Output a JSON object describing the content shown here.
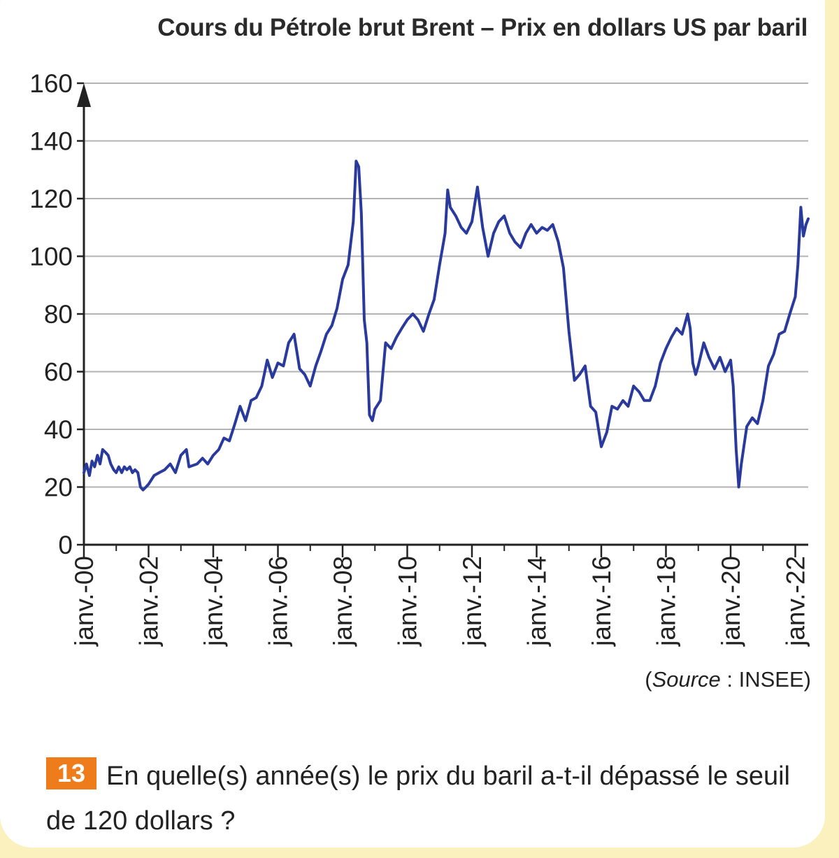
{
  "colors": {
    "line": "#2a3a9c",
    "grid": "#b3b3b3",
    "axis": "#222222",
    "badge": "#ee7c1a",
    "background": "#fbf1bf"
  },
  "chart_data": {
    "type": "line",
    "title": "Cours du Pétrole brut Brent – Prix en dollars US par baril",
    "xlabel": "",
    "ylabel": "",
    "ylim": [
      0,
      160
    ],
    "yticks": [
      0,
      20,
      40,
      60,
      80,
      100,
      120,
      140,
      160
    ],
    "xlim": [
      2000.0,
      2022.4
    ],
    "grid": true,
    "xticks": [
      {
        "x": 2000,
        "label": "janv.-00"
      },
      {
        "x": 2002,
        "label": "janv.-02"
      },
      {
        "x": 2004,
        "label": "janv.-04"
      },
      {
        "x": 2006,
        "label": "janv.-06"
      },
      {
        "x": 2008,
        "label": "janv.-08"
      },
      {
        "x": 2010,
        "label": "janv.-10"
      },
      {
        "x": 2012,
        "label": "janv.-12"
      },
      {
        "x": 2014,
        "label": "janv.-14"
      },
      {
        "x": 2016,
        "label": "janv.-16"
      },
      {
        "x": 2018,
        "label": "janv.-18"
      },
      {
        "x": 2020,
        "label": "janv.-20"
      },
      {
        "x": 2022,
        "label": "janv.-22"
      }
    ],
    "series": [
      {
        "name": "Brent",
        "x": [
          2000.0,
          2000.08,
          2000.17,
          2000.25,
          2000.33,
          2000.42,
          2000.5,
          2000.58,
          2000.67,
          2000.75,
          2000.83,
          2000.92,
          2001.0,
          2001.08,
          2001.17,
          2001.25,
          2001.33,
          2001.42,
          2001.5,
          2001.58,
          2001.67,
          2001.75,
          2001.83,
          2001.92,
          2002.0,
          2002.17,
          2002.33,
          2002.5,
          2002.67,
          2002.83,
          2003.0,
          2003.17,
          2003.25,
          2003.5,
          2003.67,
          2003.83,
          2004.0,
          2004.17,
          2004.33,
          2004.5,
          2004.67,
          2004.83,
          2005.0,
          2005.17,
          2005.33,
          2005.5,
          2005.67,
          2005.83,
          2006.0,
          2006.17,
          2006.33,
          2006.5,
          2006.67,
          2006.83,
          2007.0,
          2007.17,
          2007.33,
          2007.5,
          2007.67,
          2007.83,
          2008.0,
          2008.17,
          2008.33,
          2008.42,
          2008.5,
          2008.58,
          2008.67,
          2008.75,
          2008.83,
          2008.92,
          2009.0,
          2009.17,
          2009.33,
          2009.5,
          2009.67,
          2009.83,
          2010.0,
          2010.17,
          2010.33,
          2010.5,
          2010.67,
          2010.83,
          2011.0,
          2011.17,
          2011.25,
          2011.33,
          2011.5,
          2011.67,
          2011.83,
          2012.0,
          2012.17,
          2012.33,
          2012.5,
          2012.67,
          2012.83,
          2013.0,
          2013.17,
          2013.33,
          2013.5,
          2013.67,
          2013.83,
          2014.0,
          2014.17,
          2014.33,
          2014.5,
          2014.67,
          2014.83,
          2015.0,
          2015.17,
          2015.33,
          2015.5,
          2015.67,
          2015.83,
          2016.0,
          2016.17,
          2016.33,
          2016.5,
          2016.67,
          2016.83,
          2017.0,
          2017.17,
          2017.33,
          2017.5,
          2017.67,
          2017.83,
          2018.0,
          2018.17,
          2018.33,
          2018.5,
          2018.67,
          2018.75,
          2018.83,
          2018.92,
          2019.0,
          2019.17,
          2019.33,
          2019.5,
          2019.67,
          2019.83,
          2020.0,
          2020.08,
          2020.17,
          2020.25,
          2020.33,
          2020.5,
          2020.67,
          2020.83,
          2021.0,
          2021.17,
          2021.33,
          2021.5,
          2021.67,
          2021.83,
          2022.0,
          2022.08,
          2022.17,
          2022.25,
          2022.33,
          2022.4
        ],
        "values": [
          25,
          28,
          24,
          29,
          27,
          31,
          28,
          33,
          32,
          31,
          28,
          26,
          25,
          27,
          25,
          27,
          26,
          27,
          25,
          26,
          25,
          20,
          19,
          20,
          21,
          24,
          25,
          26,
          28,
          25,
          31,
          33,
          27,
          28,
          30,
          28,
          31,
          33,
          37,
          36,
          42,
          48,
          43,
          50,
          51,
          55,
          64,
          58,
          63,
          62,
          70,
          73,
          61,
          59,
          55,
          62,
          67,
          73,
          76,
          82,
          92,
          97,
          112,
          133,
          131,
          115,
          78,
          70,
          45,
          43,
          47,
          50,
          70,
          68,
          72,
          75,
          78,
          80,
          78,
          74,
          80,
          85,
          97,
          108,
          123,
          117,
          114,
          110,
          108,
          112,
          124,
          110,
          100,
          108,
          112,
          114,
          108,
          105,
          103,
          108,
          111,
          108,
          110,
          109,
          111,
          105,
          96,
          74,
          57,
          59,
          62,
          48,
          46,
          34,
          39,
          48,
          47,
          50,
          48,
          55,
          53,
          50,
          50,
          55,
          63,
          68,
          72,
          75,
          73,
          80,
          75,
          63,
          59,
          62,
          70,
          65,
          61,
          65,
          60,
          64,
          55,
          33,
          20,
          28,
          41,
          44,
          42,
          50,
          62,
          66,
          73,
          74,
          80,
          86,
          97,
          117,
          107,
          111,
          113
        ]
      }
    ]
  },
  "source_prefix": "(",
  "source_word": "Source",
  "source_suffix": " : INSEE)",
  "question": {
    "number": "13",
    "text": "En quelle(s) année(s) le prix du baril a-t-il dépassé le seuil de 120 dollars ?"
  }
}
